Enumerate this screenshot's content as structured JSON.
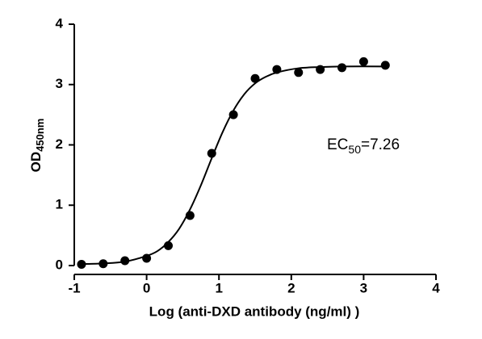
{
  "chart_data": {
    "type": "scatter",
    "x_label": "Log (anti-DXD antibody (ng/ml) )",
    "y_label": {
      "main": "OD",
      "sub": "450nm"
    },
    "annotation": {
      "main": "EC",
      "sub": "50",
      "rest": "=7.26"
    },
    "x": [
      -0.9,
      -0.6,
      -0.3,
      0,
      0.3,
      0.6,
      0.9,
      1.2,
      1.5,
      1.8,
      2.1,
      2.4,
      2.7,
      3.0,
      3.3
    ],
    "values": [
      0.02,
      0.03,
      0.08,
      0.12,
      0.33,
      0.83,
      1.86,
      2.5,
      3.1,
      3.25,
      3.2,
      3.25,
      3.28,
      3.38,
      3.32
    ],
    "color": "#000000",
    "curve": {
      "x": [
        -0.9,
        -0.6,
        -0.3,
        0,
        0.15,
        0.3,
        0.45,
        0.6,
        0.75,
        0.9,
        1.05,
        1.2,
        1.35,
        1.5,
        1.65,
        1.8,
        2.1,
        2.4,
        2.7,
        3.3
      ],
      "values": [
        0.025,
        0.035,
        0.065,
        0.16,
        0.24,
        0.39,
        0.61,
        0.93,
        1.33,
        1.78,
        2.21,
        2.57,
        2.84,
        3.02,
        3.13,
        3.2,
        3.27,
        3.29,
        3.3,
        3.3
      ]
    },
    "xlim": [
      -1,
      4
    ],
    "xticks": [
      -1,
      0,
      1,
      2,
      3,
      4
    ],
    "ylim": [
      0,
      4
    ],
    "yticks": [
      0,
      1,
      2,
      3,
      4
    ]
  }
}
